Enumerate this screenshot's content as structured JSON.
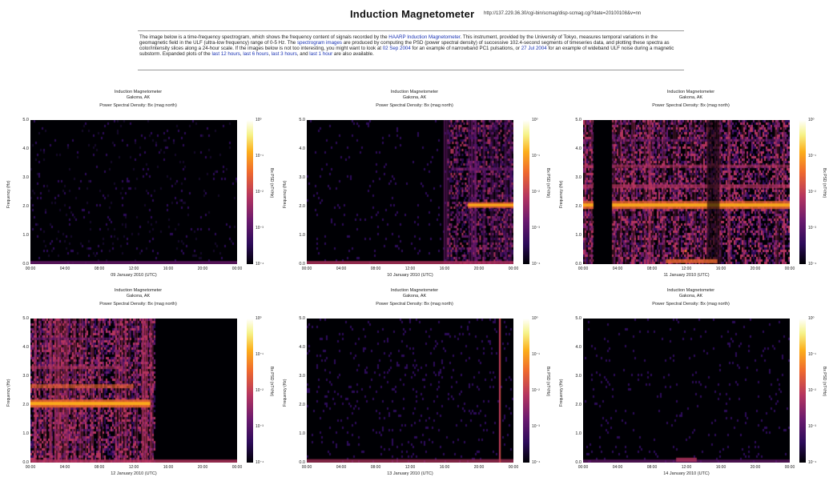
{
  "page": {
    "title": "Induction Magnetometer",
    "url": "http://137.229.36.30/cgi-bin/scmag/disp-scmag.cgi?date=20100108&v=nn",
    "intro": {
      "p1": "The image below is a time-frequency spectrogram, which shows the frequency content of signals recorded by the ",
      "link1": "HAARP Induction Magnetometer",
      "p2": ". This instrument, provided by the University of Tokyo, measures temporal variations in the geomagnetic field in the ULF (ultra-low frequency) range of 0-5 Hz. The ",
      "link2": "spectrogram images",
      "p3": " are produced by computing the PSD (power spectral density) of successive 102.4-second segments of timeseries data, and plotting these spectra as color/intensity slices along a 24-hour scale. If the images below is not too interesting, you might want to look at ",
      "link3": "02 Sep 2004",
      "p4": " for an example of narrowband PC1 pulsations, or ",
      "link4": "27 Jul 2004",
      "p5": " for an example of wideband ULF noise during a magnetic substorm. Expanded plots of the ",
      "link5": "last 12 hours",
      "p6": ", ",
      "link6": "last 6 hours",
      "p7": ", ",
      "link7": "last 3 hours",
      "p8": ", and ",
      "link8": "last 1 hour",
      "p9": " are also available."
    }
  },
  "panels": [
    {
      "line1": "Induction Magnetometer",
      "line2": "Gakona, AK",
      "line3": "Power Spectral Density: Bx (mag north)",
      "xlabel": "09 January 2010 (UTC)",
      "pattern": "quiet"
    },
    {
      "line1": "Induction Magnetometer",
      "line2": "Gakona, AK",
      "line3": "Power Spectral Density: Bx (mag north)",
      "xlabel": "10 January 2010 (UTC)",
      "pattern": "onset"
    },
    {
      "line1": "Induction Magnetometer",
      "line2": "Gakona, AK",
      "line3": "Power Spectral Density: Bx (mag north)",
      "xlabel": "11 January 2010 (UTC)",
      "pattern": "active"
    },
    {
      "line1": "Induction Magnetometer",
      "line2": "Gakona, AK",
      "line3": "Power Spectral Density: Bx (mag north)",
      "xlabel": "12 January 2010 (UTC)",
      "pattern": "decay"
    },
    {
      "line1": "Induction Magnetometer",
      "line2": "Gakona, AK",
      "line3": "Power Spectral Density: Bx (mag north)",
      "xlabel": "13 January 2010 (UTC)",
      "pattern": "spike"
    },
    {
      "line1": "Induction Magnetometer",
      "line2": "Gakona, AK",
      "line3": "Power Spectral Density: Bx (mag north)",
      "xlabel": "14 January 2010 (UTC)",
      "pattern": "quiet2"
    }
  ],
  "axes": {
    "ylabel": "Frequency (Hz)",
    "yticks": [
      "5.0",
      "4.0",
      "3.0",
      "2.0",
      "1.0",
      "0.0"
    ],
    "xticks": [
      "00:00",
      "04:00",
      "08:00",
      "12:00",
      "16:00",
      "20:00",
      "00:00"
    ],
    "clabel": "Bx PSD (nT²/Hz)",
    "cticks": [
      "10⁰",
      "10⁻¹",
      "10⁻²",
      "10⁻³",
      "10⁻⁴"
    ]
  },
  "colormap": [
    "#000004",
    "#2c0b59",
    "#6a1a6e",
    "#b5355f",
    "#ef6a2d",
    "#fcae1a",
    "#f6f38a"
  ]
}
